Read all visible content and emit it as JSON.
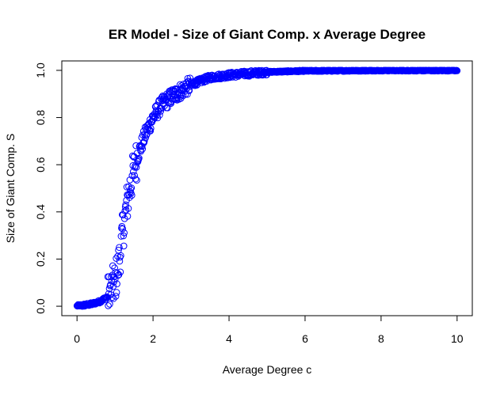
{
  "chart_data": {
    "type": "scatter",
    "title": "ER Model - Size of Giant Comp. x Average Degree",
    "xlabel": "Average Degree c",
    "ylabel": "Size of Giant Comp. S",
    "xlim": [
      -0.4,
      10.4
    ],
    "ylim": [
      -0.04,
      1.04
    ],
    "xticks": [
      "0",
      "2",
      "4",
      "6",
      "8",
      "10"
    ],
    "yticks": [
      "0.0",
      "0.2",
      "0.4",
      "0.6",
      "0.8",
      "1.0"
    ],
    "grid": false,
    "marker": "open-circle",
    "color": "#0000ff",
    "x_range": [
      0,
      10
    ],
    "n_points": 1000,
    "series": [
      {
        "curve_samples": {
          "x": [
            0,
            0.2,
            0.4,
            0.6,
            0.8,
            1.0,
            1.1,
            1.2,
            1.3,
            1.4,
            1.5,
            1.6,
            1.8,
            2.0,
            2.2,
            2.5,
            3.0,
            3.5,
            4.0,
            5.0,
            6.0,
            8.0,
            10.0
          ],
          "y": [
            0.0,
            0.005,
            0.01,
            0.02,
            0.04,
            0.1,
            0.18,
            0.31,
            0.42,
            0.51,
            0.58,
            0.64,
            0.73,
            0.8,
            0.85,
            0.89,
            0.94,
            0.97,
            0.98,
            0.993,
            0.998,
            1.0,
            1.0
          ]
        }
      }
    ]
  }
}
